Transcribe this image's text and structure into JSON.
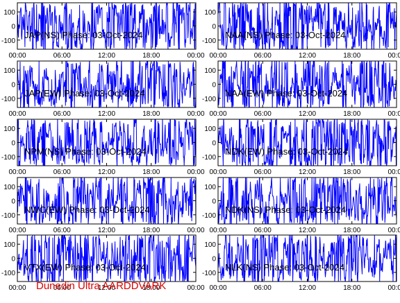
{
  "credit": "Dunedin Ultra AARDDVARK",
  "colors": {
    "trace": "#0000ff",
    "axis": "#000000",
    "credit": "#dd0000"
  },
  "axes": {
    "y_ticks": [
      100,
      0,
      -100
    ],
    "y_range": [
      -165,
      165
    ],
    "x_ticks": [
      "00:00",
      "06:00",
      "12:00",
      "18:00",
      "00:00"
    ],
    "x_range_hours": [
      0,
      24
    ]
  },
  "chart_data": [
    {
      "type": "line",
      "title": "JAP(NS) Phase: 03-Oct-2024",
      "series": [
        {
          "values": []
        }
      ]
    },
    {
      "type": "line",
      "title": "NAA(NS) Phase: 03-Oct-2024",
      "series": [
        {
          "values": []
        }
      ]
    },
    {
      "type": "line",
      "title": "JAP(EW) Phase: 03-Oct-2024",
      "series": [
        {
          "values": []
        }
      ]
    },
    {
      "type": "line",
      "title": "NAA(EW) Phase: 03-Oct-2024",
      "series": [
        {
          "values": []
        }
      ]
    },
    {
      "type": "line",
      "title": "NPM(NS) Phase: 03-Oct-2024",
      "series": [
        {
          "values": []
        }
      ]
    },
    {
      "type": "line",
      "title": "NDK(EW) Phase: 03-Oct-2024",
      "series": [
        {
          "values": []
        }
      ]
    },
    {
      "type": "line",
      "title": "NWC(EW) Phase: 03-Oct-2024",
      "series": [
        {
          "values": []
        }
      ]
    },
    {
      "type": "line",
      "title": "NDK(NS) Phase: 03-Oct-2024",
      "series": [
        {
          "values": []
        }
      ]
    },
    {
      "type": "line",
      "title": "VTX(EW) Phase: 03-Oct-2024",
      "series": [
        {
          "values": []
        }
      ]
    },
    {
      "type": "line",
      "title": "NLK(NS) Phase: 03-Oct-2024",
      "series": [
        {
          "values": []
        }
      ]
    }
  ]
}
